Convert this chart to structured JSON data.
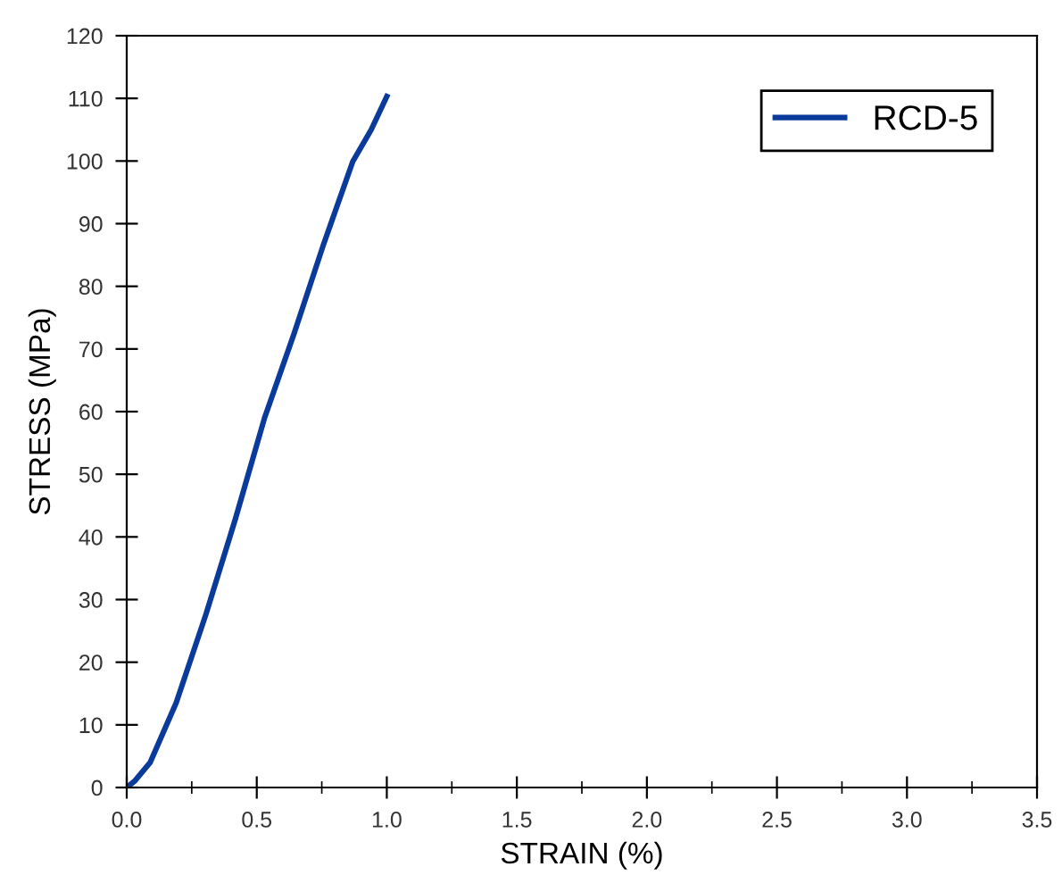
{
  "chart_data": {
    "type": "line",
    "xlabel": "STRAIN (%)",
    "ylabel": "STRESS (MPa)",
    "series": [
      {
        "name": "RCD-5",
        "color": "#0a3a9a",
        "x": [
          0,
          0.03,
          0.09,
          0.19,
          0.305,
          0.418,
          0.53,
          0.643,
          0.756,
          0.869,
          0.94,
          1.0
        ],
        "values": [
          0,
          1,
          4,
          13.5,
          27.7,
          42.9,
          59,
          72.4,
          86.6,
          99.9,
          105,
          110.3
        ]
      }
    ],
    "xlim": [
      0,
      3.5
    ],
    "ylim": [
      0,
      120
    ],
    "xticks": [
      {
        "value": 0,
        "label": "0.0"
      },
      {
        "value": 0.25,
        "label": null
      },
      0.5,
      {
        "value": 0.75,
        "label": null
      },
      {
        "value": 1,
        "label": "1.0"
      },
      {
        "value": 1.25,
        "label": null
      },
      1.5,
      {
        "value": 1.75,
        "label": null
      },
      {
        "value": 2,
        "label": "2.0"
      },
      {
        "value": 2.25,
        "label": null
      },
      2.5,
      {
        "value": 2.75,
        "label": null
      },
      {
        "value": 3,
        "label": "3.0"
      },
      {
        "value": 3.25,
        "label": null
      },
      3.5
    ],
    "yticks": [
      0,
      10,
      20,
      30,
      40,
      50,
      60,
      70,
      80,
      90,
      100,
      110,
      120
    ],
    "grid": false,
    "legend": "top right",
    "line_style": "solid",
    "marker": "none"
  }
}
